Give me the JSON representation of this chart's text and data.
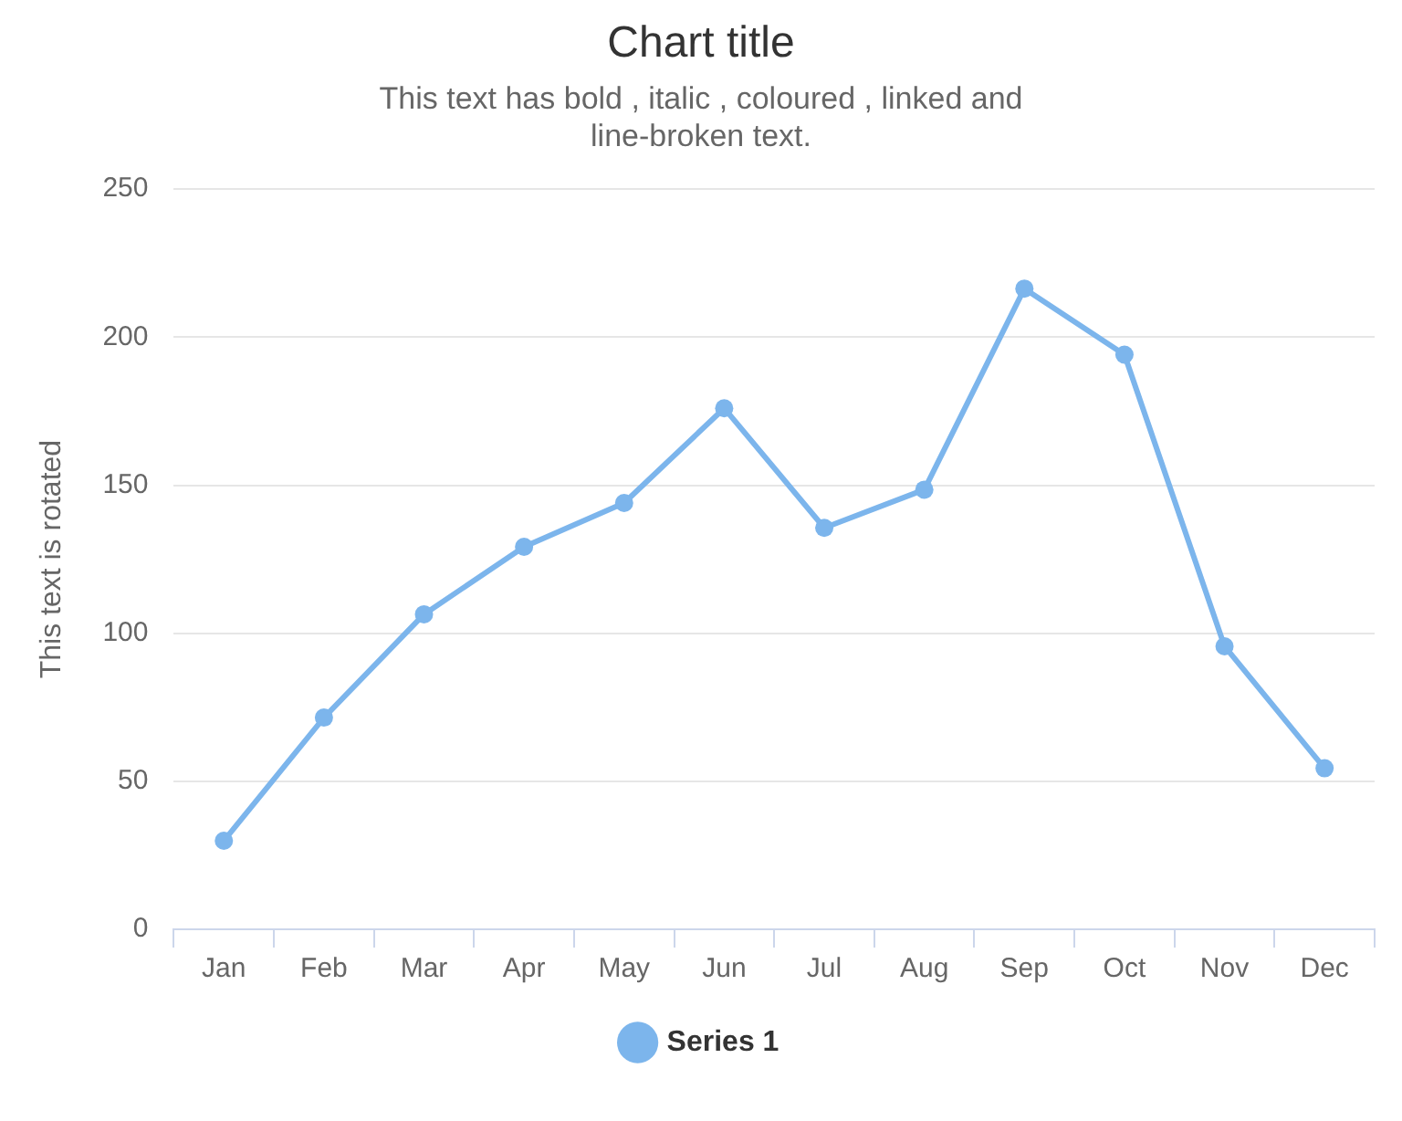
{
  "chart_data": {
    "type": "line",
    "title": "Chart title",
    "subtitle": "This text has bold , italic , coloured , linked and\nline-broken text.",
    "ylabel": "This text is rotated",
    "categories": [
      "Jan",
      "Feb",
      "Mar",
      "Apr",
      "May",
      "Jun",
      "Jul",
      "Aug",
      "Sep",
      "Oct",
      "Nov",
      "Dec"
    ],
    "series": [
      {
        "name": "Series 1",
        "color": "#7cb5ec",
        "values": [
          29.9,
          71.5,
          106.4,
          129.2,
          144.0,
          176.0,
          135.6,
          148.5,
          216.4,
          194.1,
          95.6,
          54.4
        ]
      }
    ],
    "ylim": [
      0,
      250
    ],
    "yticks": [
      0,
      50,
      100,
      150,
      200,
      250
    ],
    "grid": "y",
    "legend": "bottom",
    "marker": "circle",
    "line_style": "solid"
  }
}
